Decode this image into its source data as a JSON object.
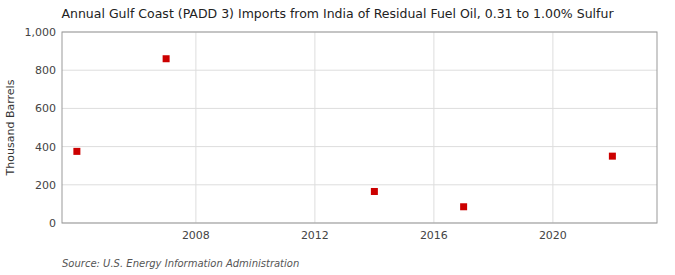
{
  "chart_data": {
    "type": "scatter",
    "title": "Annual Gulf Coast (PADD 3) Imports from India of Residual Fuel Oil, 0.31 to 1.00% Sulfur",
    "ylabel": "Thousand Barrels",
    "source": "Source: U.S. Energy Information Administration",
    "x": [
      2004,
      2007,
      2014,
      2017,
      2022
    ],
    "values": [
      375,
      860,
      165,
      85,
      350
    ],
    "color": "#cc0000",
    "marker": "square",
    "xlim": [
      2003.5,
      2023.5
    ],
    "xticks": [
      2008,
      2012,
      2016,
      2020
    ],
    "ylim": [
      0,
      1000
    ],
    "yticks": [
      0,
      200,
      400,
      600,
      800,
      {
        "value": 1000,
        "label": "1,000"
      }
    ],
    "grid": true
  }
}
